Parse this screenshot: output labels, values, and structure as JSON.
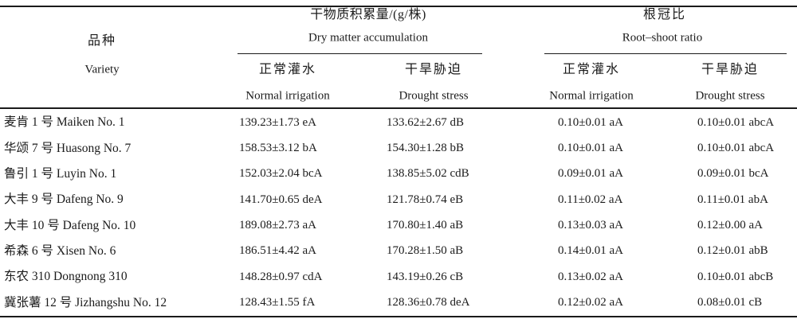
{
  "colors": {
    "background": "#ffffff",
    "text": "#1b1b1b",
    "rule": "#1b1b1b"
  },
  "title_header": {
    "variety": {
      "zh": "品种",
      "en": "Variety"
    },
    "groups": [
      {
        "zh": "干物质积累量/(g/株)",
        "en": "Dry matter accumulation",
        "sub": [
          {
            "zh": "正常灌水",
            "en": "Normal irrigation"
          },
          {
            "zh": "干旱胁迫",
            "en": "Drought stress"
          }
        ]
      },
      {
        "zh": "根冠比",
        "en": "Root–shoot ratio",
        "sub": [
          {
            "zh": "正常灌水",
            "en": "Normal irrigation"
          },
          {
            "zh": "干旱胁迫",
            "en": "Drought stress"
          }
        ]
      }
    ]
  },
  "rows": [
    {
      "variety": "麦肯 1 号 Maiken No. 1",
      "dm_normal": "139.23±1.73 eA",
      "dm_drought": "133.62±2.67 dB",
      "rs_normal": "0.10±0.01 aA",
      "rs_drought": "0.10±0.01 abcA"
    },
    {
      "variety": "华颂 7 号 Huasong No. 7",
      "dm_normal": "158.53±3.12 bA",
      "dm_drought": "154.30±1.28 bB",
      "rs_normal": "0.10±0.01 aA",
      "rs_drought": "0.10±0.01 abcA"
    },
    {
      "variety": "鲁引 1 号 Luyin No. 1",
      "dm_normal": "152.03±2.04 bcA",
      "dm_drought": "138.85±5.02 cdB",
      "rs_normal": "0.09±0.01 aA",
      "rs_drought": "0.09±0.01 bcA"
    },
    {
      "variety": "大丰 9 号 Dafeng No. 9",
      "dm_normal": "141.70±0.65 deA",
      "dm_drought": "121.78±0.74 eB",
      "rs_normal": "0.11±0.02 aA",
      "rs_drought": "0.11±0.01 abA"
    },
    {
      "variety": "大丰 10 号 Dafeng No. 10",
      "dm_normal": "189.08±2.73 aA",
      "dm_drought": "170.80±1.40 aB",
      "rs_normal": "0.13±0.03 aA",
      "rs_drought": "0.12±0.00 aA"
    },
    {
      "variety": "希森 6 号 Xisen No. 6",
      "dm_normal": "186.51±4.42 aA",
      "dm_drought": "170.28±1.50 aB",
      "rs_normal": "0.14±0.01 aA",
      "rs_drought": "0.12±0.01 abB"
    },
    {
      "variety": "东农 310 Dongnong 310",
      "dm_normal": "148.28±0.97 cdA",
      "dm_drought": "143.19±0.26 cB",
      "rs_normal": "0.13±0.02 aA",
      "rs_drought": "0.10±0.01 abcB"
    },
    {
      "variety": "冀张薯 12 号 Jizhangshu No. 12",
      "dm_normal": "128.43±1.55 fA",
      "dm_drought": "128.36±0.78 deA",
      "rs_normal": "0.12±0.02 aA",
      "rs_drought": "0.08±0.01 cB"
    }
  ]
}
